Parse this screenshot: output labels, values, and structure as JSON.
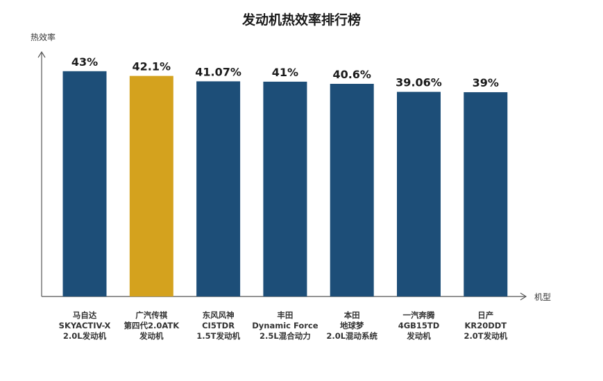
{
  "chart_data": {
    "type": "bar",
    "title": "发动机热效率排行榜",
    "ylabel": "热效率",
    "xlabel": "机型",
    "ylim": [
      0,
      48
    ],
    "categories": [
      [
        "马自达",
        "SKYACTIV-X",
        "2.0L发动机"
      ],
      [
        "广汽传祺",
        "第四代2.0ATK",
        "发动机"
      ],
      [
        "东风风神",
        "CI5TDR",
        "1.5T发动机"
      ],
      [
        "丰田",
        "Dynamic Force",
        "2.5L混合动力"
      ],
      [
        "本田",
        "地球梦",
        "2.0L混动系统"
      ],
      [
        "一汽奔腾",
        "4GB15TD",
        "发动机"
      ],
      [
        "日产",
        "KR20DDT",
        "2.0T发动机"
      ]
    ],
    "values": [
      43,
      42.1,
      41.07,
      41,
      40.6,
      39.06,
      39
    ],
    "value_labels": [
      "43%",
      "42.1%",
      "41.07%",
      "41%",
      "40.6%",
      "39.06%",
      "39%"
    ],
    "colors": {
      "default": "#1d4e78",
      "highlight": "#d4a21e",
      "highlight_index": 1
    },
    "grid": false,
    "legend": "none"
  }
}
